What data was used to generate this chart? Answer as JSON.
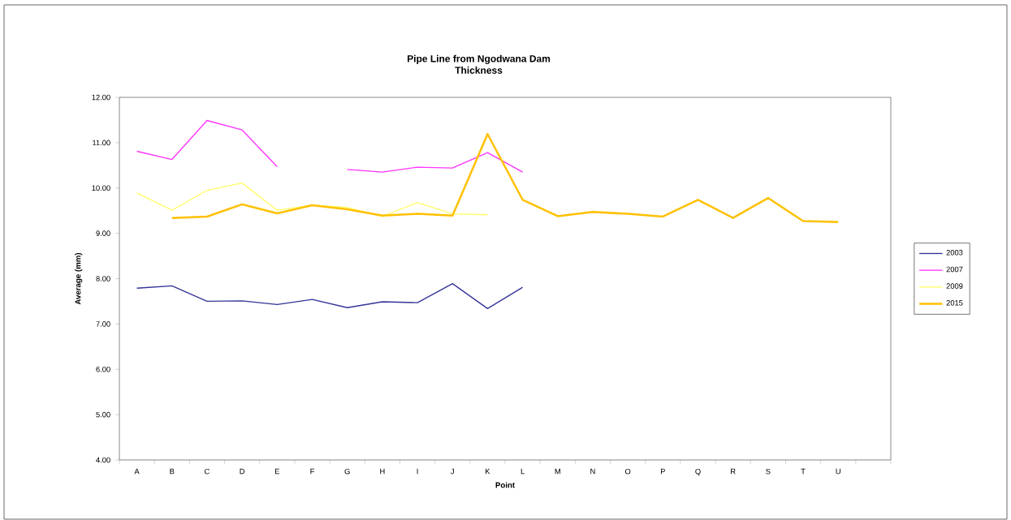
{
  "chart_data": {
    "type": "line",
    "title": "Pipe Line from Ngodwana Dam",
    "subtitle": "Thickness",
    "xlabel": "Point",
    "ylabel": "Average (mm)",
    "categories": [
      "A",
      "B",
      "C",
      "D",
      "E",
      "F",
      "G",
      "H",
      "I",
      "J",
      "K",
      "L",
      "M",
      "N",
      "O",
      "P",
      "Q",
      "R",
      "S",
      "T",
      "U",
      null
    ],
    "series": [
      {
        "name": "2003",
        "color": "#333399",
        "values": [
          7.79,
          7.84,
          7.5,
          7.51,
          7.43,
          7.54,
          7.36,
          7.49,
          7.47,
          7.89,
          7.34,
          7.81,
          null,
          null,
          null,
          null,
          null,
          null,
          null,
          null,
          null,
          null
        ]
      },
      {
        "name": "2007",
        "color": "#ff33ff",
        "values": [
          10.81,
          10.63,
          11.49,
          11.28,
          10.47,
          null,
          10.41,
          10.35,
          10.46,
          10.44,
          10.78,
          10.35,
          null,
          null,
          null,
          null,
          null,
          null,
          null,
          null,
          null,
          null
        ]
      },
      {
        "name": "2009",
        "color": "#ffff66",
        "values": [
          9.89,
          9.51,
          9.95,
          10.11,
          9.51,
          9.62,
          9.57,
          9.37,
          9.68,
          9.43,
          9.41,
          null,
          null,
          null,
          null,
          null,
          null,
          null,
          null,
          null,
          null,
          null
        ]
      },
      {
        "name": "2015",
        "color": "#ffc000",
        "values": [
          null,
          9.34,
          9.37,
          9.64,
          9.44,
          9.62,
          9.53,
          9.39,
          9.43,
          9.39,
          11.19,
          9.74,
          9.38,
          9.47,
          9.43,
          9.37,
          9.74,
          9.34,
          9.78,
          9.27,
          9.25,
          null
        ]
      }
    ],
    "ylim": [
      4,
      12
    ],
    "yticks": [
      {
        "value": 4,
        "label": "4.00"
      },
      {
        "value": 5,
        "label": "5.00"
      },
      {
        "value": 6,
        "label": "6.00"
      },
      {
        "value": 7,
        "label": "7.00"
      },
      {
        "value": 8,
        "label": "8.00"
      },
      {
        "value": 9,
        "label": "9.00"
      },
      {
        "value": 10,
        "label": "10.00"
      },
      {
        "value": 11,
        "label": "11.00"
      },
      {
        "value": 12,
        "label": "12.00"
      }
    ],
    "grid": false,
    "legend": "right"
  }
}
